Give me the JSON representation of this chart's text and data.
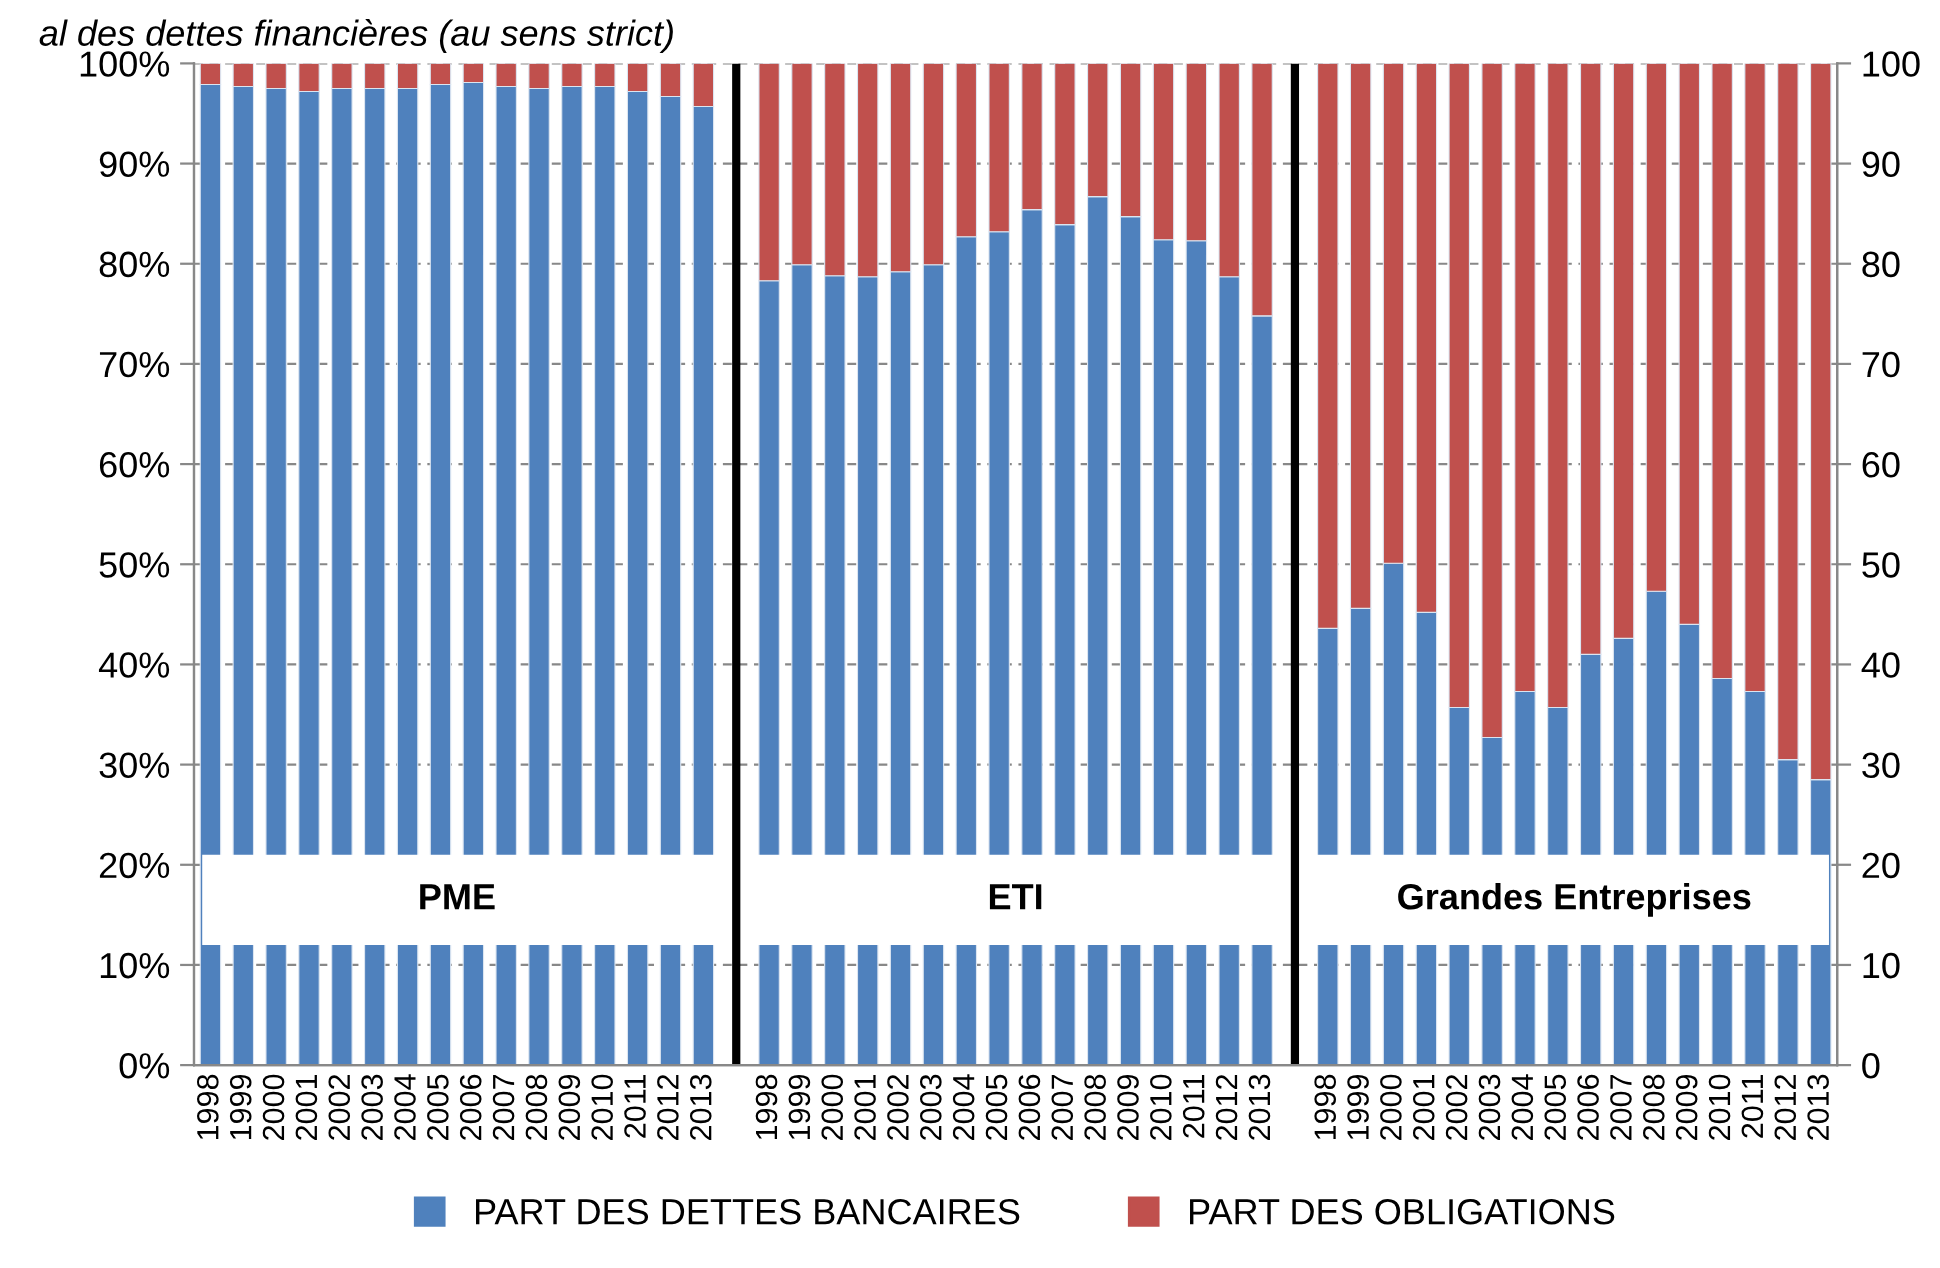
{
  "chart_data": {
    "type": "bar",
    "stacked": true,
    "title": "al des dettes financières (au sens strict)",
    "categories": [
      "1998",
      "1999",
      "2000",
      "2001",
      "2002",
      "2003",
      "2004",
      "2005",
      "2006",
      "2007",
      "2008",
      "2009",
      "2010",
      "2011",
      "2012",
      "2013",
      null,
      "1998",
      "1999",
      "2000",
      "2001",
      "2002",
      "2003",
      "2004",
      "2005",
      "2006",
      "2007",
      "2008",
      "2009",
      "2010",
      "2011",
      "2012",
      "2013",
      null,
      "1998",
      "1999",
      "2000",
      "2001",
      "2002",
      "2003",
      "2004",
      "2005",
      "2006",
      "2007",
      "2008",
      "2009",
      "2010",
      "2011",
      "2012",
      "2013"
    ],
    "series": [
      {
        "name": "PART DES DETTES BANCAIRES",
        "color": "#4f81bd",
        "values": [
          97.9,
          97.7,
          97.5,
          97.2,
          97.5,
          97.5,
          97.5,
          97.9,
          98.1,
          97.7,
          97.5,
          97.7,
          97.7,
          97.2,
          96.7,
          95.7,
          null,
          78.3,
          79.9,
          78.8,
          78.7,
          79.2,
          79.9,
          82.7,
          83.2,
          85.4,
          83.9,
          86.7,
          84.7,
          82.4,
          82.3,
          78.7,
          74.8,
          null,
          43.6,
          45.6,
          50.1,
          45.2,
          35.7,
          32.7,
          37.3,
          35.7,
          41.0,
          42.6,
          47.3,
          44.0,
          38.6,
          37.3,
          30.5,
          28.5
        ]
      },
      {
        "name": "PART DES OBLIGATIONS",
        "color": "#c0504d",
        "values": [
          2.1,
          2.3,
          2.5,
          2.8,
          2.5,
          2.5,
          2.5,
          2.1,
          1.9,
          2.3,
          2.5,
          2.3,
          2.3,
          2.8,
          3.3,
          4.3,
          null,
          21.7,
          20.1,
          21.2,
          21.3,
          20.8,
          20.1,
          17.3,
          16.8,
          14.6,
          16.1,
          13.3,
          15.3,
          17.6,
          17.7,
          21.3,
          25.2,
          null,
          56.4,
          54.4,
          49.9,
          54.8,
          64.3,
          67.3,
          62.7,
          64.3,
          59.0,
          57.4,
          52.7,
          56.0,
          61.4,
          62.7,
          69.5,
          71.5
        ]
      },
      {
        "color": "#000000",
        "values": [
          null,
          null,
          null,
          null,
          null,
          null,
          null,
          null,
          null,
          null,
          null,
          null,
          null,
          null,
          null,
          null,
          100,
          null,
          null,
          null,
          null,
          null,
          null,
          null,
          null,
          null,
          null,
          null,
          null,
          null,
          null,
          null,
          null,
          100,
          null,
          null,
          null,
          null,
          null,
          null,
          null,
          null,
          null,
          null,
          null,
          null,
          null,
          null,
          null,
          null
        ]
      }
    ],
    "ylim": [
      0,
      100
    ],
    "yticks": [
      {
        "value": 0,
        "label": "0%"
      },
      {
        "value": 10,
        "label": "10%"
      },
      {
        "value": 20,
        "label": "20%"
      },
      {
        "value": 30,
        "label": "30%"
      },
      {
        "value": 40,
        "label": "40%"
      },
      {
        "value": 50,
        "label": "50%"
      },
      {
        "value": 60,
        "label": "60%"
      },
      {
        "value": 70,
        "label": "70%"
      },
      {
        "value": 80,
        "label": "80%"
      },
      {
        "value": 90,
        "label": "90%"
      },
      {
        "value": 100,
        "label": "100%"
      }
    ],
    "y2lim": [
      0,
      100
    ],
    "y2ticks": [
      0,
      10,
      20,
      30,
      40,
      50,
      60,
      70,
      80,
      90,
      100
    ],
    "bands": [
      {
        "axis": "y",
        "from": 12,
        "to": 21,
        "color": "#ffffff"
      }
    ],
    "annotations": [
      "PME",
      "ETI",
      "Grandes Entreprises"
    ],
    "grid": "y",
    "legend": "bottom"
  }
}
